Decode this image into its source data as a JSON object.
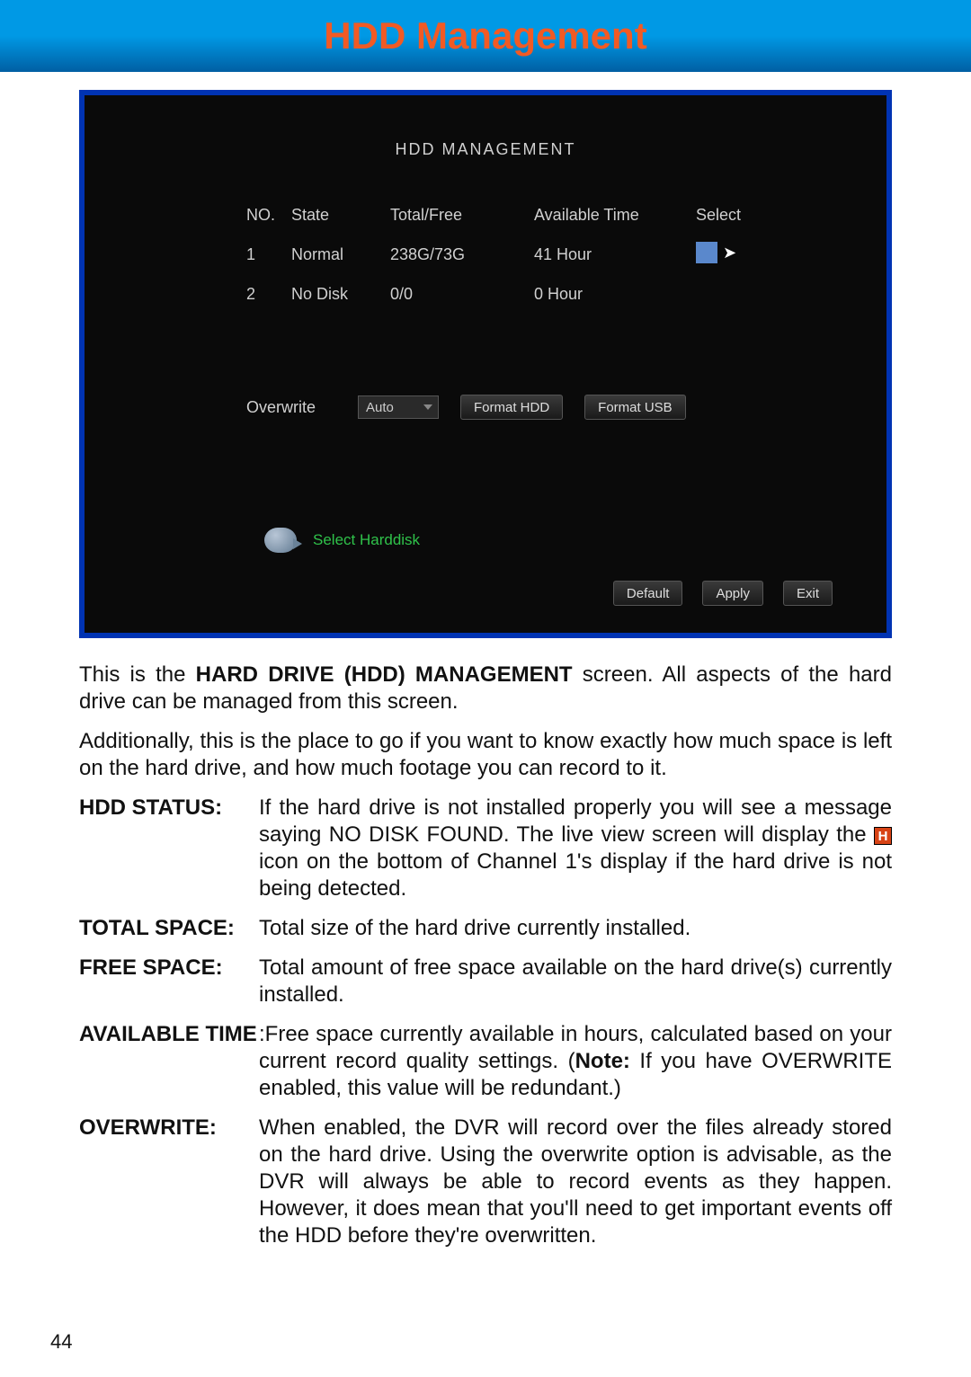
{
  "header": {
    "title": "HDD Management"
  },
  "screenshot": {
    "title": "HDD  MANAGEMENT",
    "columns": {
      "no": "NO.",
      "state": "State",
      "tf": "Total/Free",
      "at": "Available  Time",
      "sel": "Select"
    },
    "rows": [
      {
        "no": "1",
        "state": "Normal",
        "tf": "238G/73G",
        "at": "41 Hour",
        "selectable": true
      },
      {
        "no": "2",
        "state": "No  Disk",
        "tf": "0/0",
        "at": "0 Hour",
        "selectable": false
      }
    ],
    "overwrite_label": "Overwrite",
    "overwrite_value": "Auto",
    "format_hdd": "Format  HDD",
    "format_usb": "Format  USB",
    "hint": "Select  Harddisk",
    "buttons": {
      "default": "Default",
      "apply": "Apply",
      "exit": "Exit"
    }
  },
  "body": {
    "p1a": "This is the ",
    "p1b": "HARD DRIVE (HDD) MANAGEMENT",
    "p1c": " screen. All aspects of the hard drive can be managed from this screen.",
    "p2": "Additionally, this is the place to go if you want to know exactly how much space is left on the hard drive, and how much footage you can record to it.",
    "defs": {
      "hdd_status": {
        "term": "HDD STATUS:",
        "a": "If the hard drive is not installed properly you will see a message saying NO DISK FOUND. The live view screen will display the ",
        "b": " icon on the bottom of Channel 1's display if the hard drive is not being detected."
      },
      "total_space": {
        "term": "TOTAL SPACE:",
        "desc": "Total size of the hard drive currently installed."
      },
      "free_space": {
        "term": "FREE SPACE:",
        "desc": "Total amount of free space available on the hard drive(s) currently installed."
      },
      "available_time": {
        "term": "AVAILABLE TIME",
        "a": ":Free space currently available in hours, calculated based on your current record quality settings. (",
        "note": "Note:",
        "b": " If you have OVERWRITE enabled, this value will be redundant.)"
      },
      "overwrite": {
        "term": "OVERWRITE:",
        "desc": "When enabled, the DVR will record over the files already stored on the hard drive. Using the overwrite option is advisable, as the DVR will always be able to record events as they happen. However, it does mean that you'll need to get important events off the HDD before they're overwritten."
      }
    }
  },
  "page_number": "44",
  "h_icon_letter": "H"
}
